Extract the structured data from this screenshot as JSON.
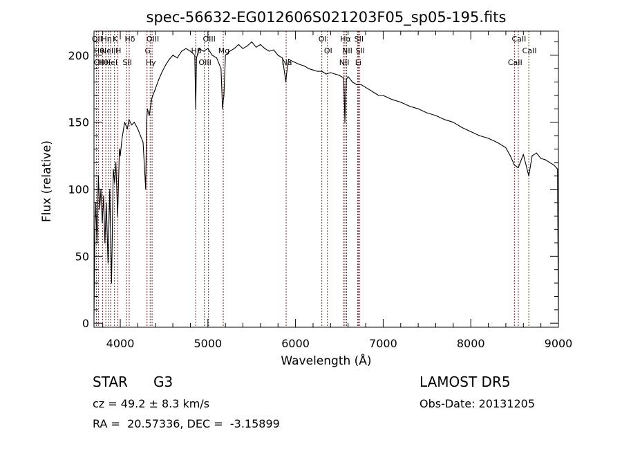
{
  "chart_data": {
    "type": "line",
    "title": "spec-56632-EG012606S021203F05_sp05-195.fits",
    "xlabel": "Wavelength (Å)",
    "ylabel": "Flux (relative)",
    "xlim": [
      3700,
      9000
    ],
    "ylim": [
      -3,
      218
    ],
    "x_ticks": [
      4000,
      5000,
      6000,
      7000,
      8000,
      9000
    ],
    "y_ticks": [
      0,
      50,
      100,
      150,
      200
    ],
    "grid": false,
    "line_color": "#000000",
    "marker_color": "#8b1a1a",
    "series": [
      {
        "x": [
          3700,
          3710,
          3720,
          3735,
          3750,
          3765,
          3780,
          3795,
          3810,
          3825,
          3840,
          3860,
          3880,
          3900,
          3920,
          3935,
          3950,
          3970,
          3990,
          4000,
          4020,
          4050,
          4080,
          4100,
          4130,
          4160,
          4200,
          4230,
          4260,
          4290,
          4300,
          4310,
          4330,
          4360,
          4400,
          4440,
          4480,
          4520,
          4560,
          4600,
          4650,
          4700,
          4750,
          4800,
          4850,
          4861,
          4870,
          4900,
          4950,
          5000,
          5050,
          5100,
          5150,
          5167,
          5173,
          5183,
          5200,
          5250,
          5300,
          5350,
          5400,
          5450,
          5500,
          5550,
          5600,
          5650,
          5700,
          5750,
          5800,
          5850,
          5890,
          5896,
          5920,
          5980,
          6050,
          6100,
          6150,
          6200,
          6250,
          6300,
          6350,
          6400,
          6450,
          6500,
          6550,
          6563,
          6580,
          6600,
          6650,
          6700,
          6750,
          6800,
          6850,
          6900,
          6950,
          7000,
          7100,
          7200,
          7300,
          7400,
          7500,
          7600,
          7700,
          7800,
          7900,
          8000,
          8100,
          8200,
          8300,
          8400,
          8450,
          8498,
          8542,
          8600,
          8662,
          8700,
          8750,
          8800,
          8850,
          8900,
          8950,
          8990,
          9000
        ],
        "y": [
          5,
          70,
          90,
          60,
          110,
          85,
          100,
          75,
          95,
          60,
          90,
          45,
          100,
          30,
          115,
          105,
          120,
          80,
          130,
          125,
          138,
          150,
          145,
          152,
          148,
          150,
          145,
          140,
          135,
          100,
          150,
          160,
          155,
          168,
          175,
          182,
          188,
          193,
          197,
          200,
          198,
          203,
          205,
          203,
          200,
          160,
          198,
          205,
          203,
          205,
          200,
          198,
          190,
          160,
          165,
          170,
          200,
          203,
          205,
          208,
          205,
          207,
          210,
          206,
          208,
          205,
          203,
          204,
          200,
          198,
          180,
          185,
          197,
          195,
          193,
          192,
          190,
          189,
          188,
          188,
          186,
          187,
          186,
          185,
          183,
          150,
          182,
          184,
          180,
          178,
          178,
          176,
          174,
          172,
          170,
          170,
          167,
          165,
          162,
          160,
          157,
          155,
          152,
          150,
          146,
          143,
          140,
          138,
          135,
          131,
          125,
          118,
          116,
          126,
          110,
          125,
          127,
          123,
          122,
          120,
          118,
          115,
          2
        ]
      }
    ],
    "line_markers": [
      {
        "x": 3727,
        "labels": [
          "OII"
        ]
      },
      {
        "x": 3750,
        "labels": [
          "Hθ",
          "OII"
        ]
      },
      {
        "x": 3798,
        "labels": [
          "Hθ"
        ]
      },
      {
        "x": 3835,
        "labels": [
          "Hη"
        ]
      },
      {
        "x": 3869,
        "labels": [
          "NeIII"
        ]
      },
      {
        "x": 3889,
        "labels": [
          "HeI"
        ]
      },
      {
        "x": 3934,
        "labels": [
          "K"
        ]
      },
      {
        "x": 3970,
        "labels": [
          "H"
        ]
      },
      {
        "x": 4072,
        "labels": [
          "SII"
        ]
      },
      {
        "x": 4102,
        "labels": [
          "Hδ"
        ]
      },
      {
        "x": 4305,
        "labels": [
          "G"
        ]
      },
      {
        "x": 4341,
        "labels": [
          "Hγ"
        ]
      },
      {
        "x": 4363,
        "labels": [
          "OIII"
        ]
      },
      {
        "x": 4861,
        "labels": [
          "Hβ"
        ]
      },
      {
        "x": 4959,
        "labels": [
          "OIII"
        ]
      },
      {
        "x": 5007,
        "labels": [
          "OIII"
        ]
      },
      {
        "x": 5175,
        "labels": [
          "Mg"
        ]
      },
      {
        "x": 5893,
        "labels": [
          "Na"
        ]
      },
      {
        "x": 6300,
        "labels": [
          "OI"
        ]
      },
      {
        "x": 6364,
        "labels": [
          "OI"
        ]
      },
      {
        "x": 6548,
        "labels": [
          "NII"
        ]
      },
      {
        "x": 6563,
        "labels": [
          "Hα"
        ]
      },
      {
        "x": 6583,
        "labels": [
          "NII"
        ]
      },
      {
        "x": 6708,
        "labels": [
          "Li"
        ]
      },
      {
        "x": 6716,
        "labels": [
          "SII"
        ]
      },
      {
        "x": 6731,
        "labels": [
          "SII"
        ]
      },
      {
        "x": 8498,
        "labels": [
          "CaII"
        ]
      },
      {
        "x": 8542,
        "labels": [
          "CaII"
        ]
      },
      {
        "x": 8662,
        "labels": [
          "CaII"
        ]
      }
    ]
  },
  "info": {
    "object_class": "STAR",
    "subclass": "G3",
    "survey": "LAMOST DR5",
    "cz": "cz = 49.2 ± 8.3 km/s",
    "obs_date": "Obs-Date: 20131205",
    "coords": "RA =  20.57336, DEC =  -3.15899"
  }
}
